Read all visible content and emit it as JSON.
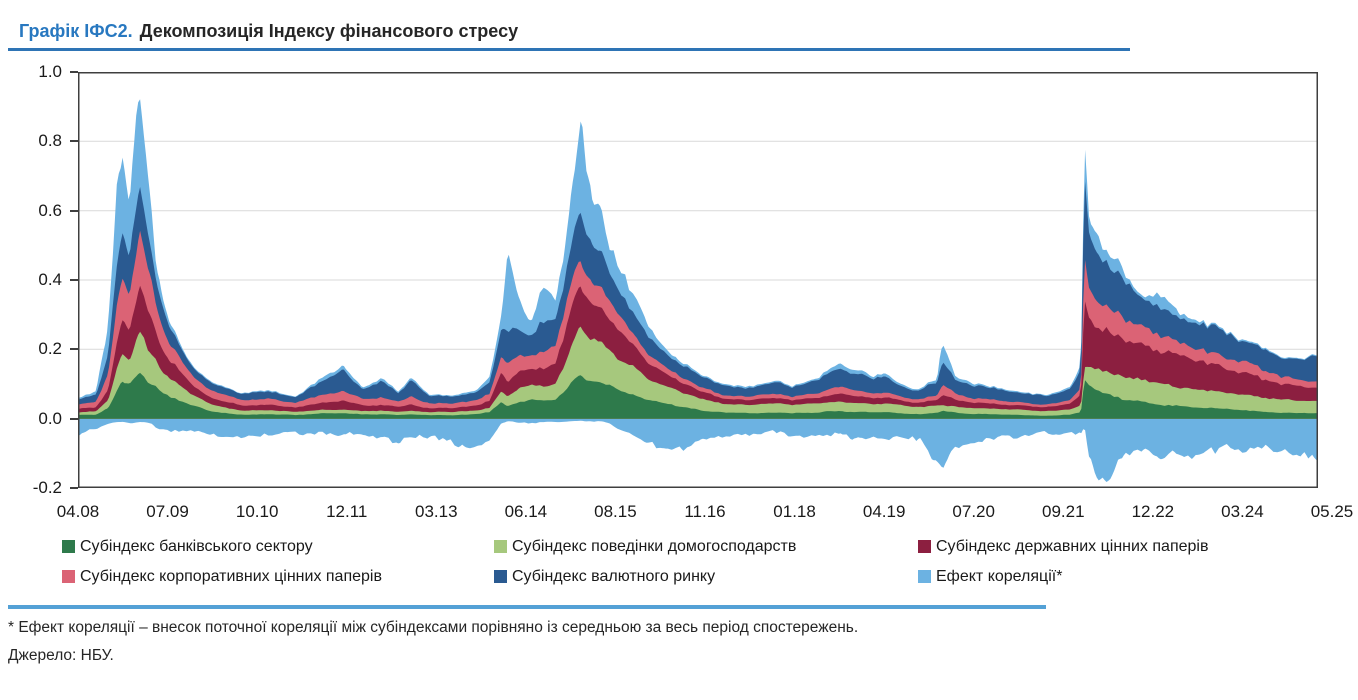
{
  "header": {
    "title_prefix": "Графік ІФС2.",
    "title": "Декомпозиція Індексу фінансового стресу"
  },
  "footnote": "* Ефект кореляції – внесок поточної кореляції між субіндексами порівняно із середньою за весь період спостережень.",
  "source": "Джерело: НБУ.",
  "colors": {
    "title_prefix": "#2878C0",
    "title_text": "#262626",
    "rule_top": "#2E74B5",
    "rule_bottom": "#54A1D6",
    "plot_border": "#3F3F3F",
    "gridline": "#D9D9D9"
  },
  "chart_data": {
    "type": "area",
    "stacked": true,
    "title": "Декомпозиція Індексу фінансового стресу",
    "grid": "horizontal",
    "legend_position": "bottom",
    "y_axis": {
      "range": [
        -0.2,
        1.0
      ],
      "ticks": [
        "1.0",
        "0.8",
        "0.6",
        "0.4",
        "0.2",
        "0.0",
        "-0.2"
      ]
    },
    "x_axis": {
      "ticks": [
        "04.08",
        "07.09",
        "10.10",
        "12.11",
        "03.13",
        "06.14",
        "08.15",
        "11.16",
        "01.18",
        "04.19",
        "07.20",
        "09.21",
        "12.22",
        "03.24",
        "05.25"
      ]
    },
    "series": [
      {
        "key": "banking",
        "name": "Субіндекс банківського сектору",
        "color": "#2E7A4B"
      },
      {
        "key": "households",
        "name": "Субіндекс поведінки домогосподарств",
        "color": "#A6C87D"
      },
      {
        "key": "government",
        "name": "Субіндекс державних цінних паперів",
        "color": "#8C1F40"
      },
      {
        "key": "corporate",
        "name": "Субіндекс корпоративних цінних паперів",
        "color": "#DB6375"
      },
      {
        "key": "fx",
        "name": "Субіндекс валютного ринку",
        "color": "#2A5A91"
      },
      {
        "key": "correlation",
        "name": "Ефект кореляції*",
        "color": "#6CB2E2"
      }
    ],
    "keyframe_columns": [
      "months_since_2008_04",
      "banking",
      "households",
      "government",
      "corporate",
      "fx",
      "correlation_positive",
      "correlation_negative"
    ],
    "keyframes": [
      [
        0,
        0.01,
        0.008,
        0.01,
        0.012,
        0.018,
        0.005,
        -0.045
      ],
      [
        3,
        0.012,
        0.01,
        0.012,
        0.015,
        0.02,
        0.008,
        -0.03
      ],
      [
        5,
        0.03,
        0.022,
        0.03,
        0.04,
        0.055,
        0.09,
        -0.015
      ],
      [
        6.5,
        0.08,
        0.065,
        0.085,
        0.1,
        0.12,
        0.23,
        -0.01
      ],
      [
        7.3,
        0.1,
        0.08,
        0.1,
        0.12,
        0.14,
        0.27,
        -0.01
      ],
      [
        8.5,
        0.09,
        0.07,
        0.09,
        0.1,
        0.12,
        0.17,
        -0.015
      ],
      [
        10.2,
        0.135,
        0.115,
        0.13,
        0.15,
        0.15,
        0.32,
        -0.01
      ],
      [
        11.5,
        0.11,
        0.09,
        0.11,
        0.12,
        0.12,
        0.16,
        -0.015
      ],
      [
        13,
        0.09,
        0.075,
        0.08,
        0.08,
        0.07,
        0.05,
        -0.025
      ],
      [
        15,
        0.065,
        0.058,
        0.055,
        0.05,
        0.048,
        0.018,
        -0.03
      ],
      [
        18,
        0.04,
        0.035,
        0.032,
        0.03,
        0.03,
        0.006,
        -0.035
      ],
      [
        22,
        0.022,
        0.02,
        0.02,
        0.02,
        0.022,
        0.003,
        -0.04
      ],
      [
        27,
        0.012,
        0.012,
        0.015,
        0.015,
        0.017,
        0.002,
        -0.05
      ],
      [
        31,
        0.013,
        0.012,
        0.016,
        0.017,
        0.022,
        0.003,
        -0.04
      ],
      [
        36,
        0.01,
        0.01,
        0.013,
        0.013,
        0.016,
        0.002,
        -0.042
      ],
      [
        41,
        0.015,
        0.01,
        0.02,
        0.025,
        0.045,
        0.012,
        -0.05
      ],
      [
        44,
        0.015,
        0.011,
        0.024,
        0.03,
        0.055,
        0.014,
        -0.04
      ],
      [
        47,
        0.012,
        0.009,
        0.016,
        0.02,
        0.028,
        0.005,
        -0.06
      ],
      [
        50,
        0.013,
        0.01,
        0.018,
        0.024,
        0.048,
        0.008,
        -0.05
      ],
      [
        53,
        0.01,
        0.009,
        0.014,
        0.016,
        0.022,
        0.004,
        -0.07
      ],
      [
        55,
        0.012,
        0.01,
        0.018,
        0.024,
        0.052,
        0.008,
        -0.055
      ],
      [
        58,
        0.01,
        0.009,
        0.013,
        0.014,
        0.02,
        0.003,
        -0.06
      ],
      [
        62,
        0.01,
        0.009,
        0.012,
        0.012,
        0.018,
        0.003,
        -0.065
      ],
      [
        66,
        0.014,
        0.01,
        0.014,
        0.014,
        0.022,
        0.006,
        -0.08
      ],
      [
        68,
        0.02,
        0.012,
        0.02,
        0.02,
        0.032,
        0.016,
        -0.07
      ],
      [
        70,
        0.05,
        0.03,
        0.05,
        0.05,
        0.08,
        0.045,
        -0.015
      ],
      [
        71,
        0.038,
        0.027,
        0.042,
        0.06,
        0.092,
        0.2,
        -0.008
      ],
      [
        73,
        0.05,
        0.04,
        0.05,
        0.05,
        0.07,
        0.07,
        -0.012
      ],
      [
        75,
        0.055,
        0.045,
        0.048,
        0.04,
        0.055,
        0.03,
        -0.015
      ],
      [
        77,
        0.052,
        0.042,
        0.052,
        0.055,
        0.085,
        0.095,
        -0.01
      ],
      [
        79,
        0.055,
        0.048,
        0.055,
        0.05,
        0.07,
        0.05,
        -0.012
      ],
      [
        81,
        0.085,
        0.08,
        0.09,
        0.075,
        0.1,
        0.12,
        -0.008
      ],
      [
        83,
        0.125,
        0.14,
        0.13,
        0.07,
        0.13,
        0.3,
        -0.005
      ],
      [
        85,
        0.11,
        0.12,
        0.11,
        0.06,
        0.11,
        0.15,
        -0.008
      ],
      [
        86.5,
        0.1,
        0.11,
        0.1,
        0.055,
        0.1,
        0.155,
        -0.01
      ],
      [
        88,
        0.09,
        0.1,
        0.09,
        0.05,
        0.08,
        0.08,
        -0.015
      ],
      [
        91,
        0.07,
        0.085,
        0.07,
        0.035,
        0.06,
        0.05,
        -0.04
      ],
      [
        94,
        0.055,
        0.065,
        0.05,
        0.025,
        0.05,
        0.03,
        -0.07
      ],
      [
        97,
        0.045,
        0.055,
        0.038,
        0.018,
        0.04,
        0.012,
        -0.08
      ],
      [
        100,
        0.032,
        0.042,
        0.028,
        0.014,
        0.034,
        0.006,
        -0.08
      ],
      [
        103,
        0.024,
        0.032,
        0.02,
        0.012,
        0.03,
        0.004,
        -0.06
      ],
      [
        107,
        0.018,
        0.026,
        0.016,
        0.01,
        0.028,
        0.004,
        -0.05
      ],
      [
        111,
        0.016,
        0.024,
        0.014,
        0.01,
        0.026,
        0.004,
        -0.045
      ],
      [
        115,
        0.018,
        0.026,
        0.016,
        0.011,
        0.03,
        0.005,
        -0.045
      ],
      [
        118,
        0.016,
        0.024,
        0.014,
        0.01,
        0.028,
        0.004,
        -0.055
      ],
      [
        122,
        0.018,
        0.026,
        0.016,
        0.012,
        0.036,
        0.006,
        -0.045
      ],
      [
        126,
        0.022,
        0.028,
        0.024,
        0.02,
        0.055,
        0.012,
        -0.04
      ],
      [
        128,
        0.02,
        0.026,
        0.022,
        0.018,
        0.048,
        0.01,
        -0.07
      ],
      [
        131,
        0.018,
        0.024,
        0.018,
        0.014,
        0.04,
        0.008,
        -0.05
      ],
      [
        133,
        0.02,
        0.025,
        0.02,
        0.016,
        0.046,
        0.01,
        -0.05
      ],
      [
        136,
        0.015,
        0.022,
        0.014,
        0.01,
        0.032,
        0.005,
        -0.06
      ],
      [
        139,
        0.013,
        0.02,
        0.013,
        0.009,
        0.028,
        0.004,
        -0.07
      ],
      [
        142,
        0.016,
        0.022,
        0.016,
        0.012,
        0.034,
        0.008,
        -0.11
      ],
      [
        143,
        0.022,
        0.016,
        0.032,
        0.028,
        0.068,
        0.06,
        -0.135
      ],
      [
        145,
        0.018,
        0.018,
        0.022,
        0.018,
        0.042,
        0.012,
        -0.09
      ],
      [
        148,
        0.014,
        0.018,
        0.016,
        0.012,
        0.034,
        0.006,
        -0.07
      ],
      [
        152,
        0.012,
        0.016,
        0.014,
        0.01,
        0.03,
        0.004,
        -0.055
      ],
      [
        156,
        0.01,
        0.015,
        0.012,
        0.009,
        0.026,
        0.003,
        -0.045
      ],
      [
        160,
        0.009,
        0.014,
        0.011,
        0.008,
        0.024,
        0.003,
        -0.04
      ],
      [
        164,
        0.012,
        0.016,
        0.015,
        0.011,
        0.032,
        0.005,
        -0.05
      ],
      [
        165.8,
        0.02,
        0.02,
        0.03,
        0.02,
        0.05,
        0.01,
        -0.05
      ],
      [
        166.4,
        0.12,
        0.035,
        0.2,
        0.12,
        0.22,
        0.085,
        -0.02
      ],
      [
        167.2,
        0.1,
        0.05,
        0.15,
        0.08,
        0.14,
        0.035,
        -0.11
      ],
      [
        168.5,
        0.085,
        0.06,
        0.135,
        0.075,
        0.125,
        0.05,
        -0.15
      ],
      [
        170,
        0.075,
        0.065,
        0.13,
        0.07,
        0.12,
        0.04,
        -0.165
      ],
      [
        172,
        0.065,
        0.065,
        0.12,
        0.065,
        0.11,
        0.05,
        -0.13
      ],
      [
        174,
        0.055,
        0.062,
        0.115,
        0.055,
        0.1,
        0.015,
        -0.11
      ],
      [
        176,
        0.048,
        0.06,
        0.11,
        0.048,
        0.09,
        0.008,
        -0.1
      ],
      [
        179,
        0.042,
        0.058,
        0.1,
        0.042,
        0.08,
        0.04,
        -0.095
      ],
      [
        182,
        0.036,
        0.055,
        0.09,
        0.04,
        0.075,
        0.012,
        -0.1
      ],
      [
        186,
        0.032,
        0.052,
        0.08,
        0.036,
        0.07,
        0.006,
        -0.09
      ],
      [
        190,
        0.028,
        0.048,
        0.07,
        0.032,
        0.065,
        0.004,
        -0.095
      ],
      [
        194,
        0.025,
        0.045,
        0.062,
        0.028,
        0.06,
        0.004,
        -0.09
      ],
      [
        196,
        0.02,
        0.04,
        0.05,
        0.024,
        0.055,
        0.003,
        -0.1
      ],
      [
        199,
        0.018,
        0.038,
        0.045,
        0.022,
        0.055,
        0.003,
        -0.095
      ],
      [
        202,
        0.016,
        0.036,
        0.04,
        0.02,
        0.052,
        0.003,
        -0.105
      ],
      [
        205,
        0.015,
        0.035,
        0.038,
        0.02,
        0.07,
        0.003,
        -0.1
      ]
    ]
  }
}
